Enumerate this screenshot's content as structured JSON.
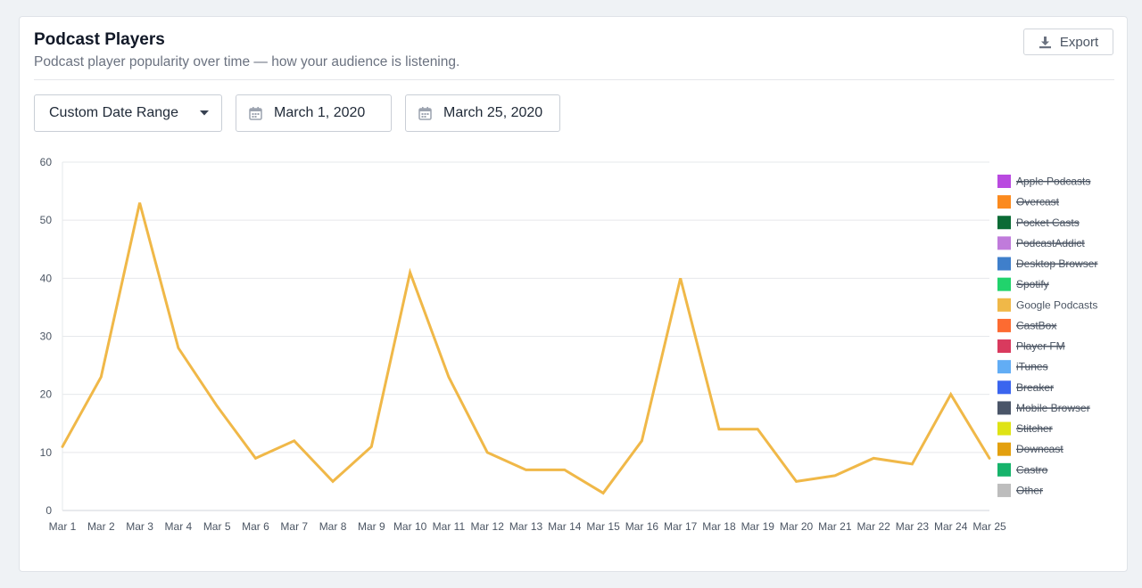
{
  "header": {
    "title": "Podcast Players",
    "subtitle": "Podcast player popularity over time — how your audience is listening.",
    "export_label": "Export"
  },
  "filters": {
    "range_label": "Custom Date Range",
    "date_from": "March 1, 2020",
    "date_to": "March 25, 2020"
  },
  "colors": {
    "grid": "#e6e8eb",
    "axis_text": "#4b5563",
    "line": "#f0b848"
  },
  "chart_data": {
    "type": "line",
    "x": [
      "Mar 1",
      "Mar 2",
      "Mar 3",
      "Mar 4",
      "Mar 5",
      "Mar 6",
      "Mar 7",
      "Mar 8",
      "Mar 9",
      "Mar 10",
      "Mar 11",
      "Mar 12",
      "Mar 13",
      "Mar 14",
      "Mar 15",
      "Mar 16",
      "Mar 17",
      "Mar 18",
      "Mar 19",
      "Mar 20",
      "Mar 21",
      "Mar 22",
      "Mar 23",
      "Mar 24",
      "Mar 25"
    ],
    "ylim": [
      0,
      60
    ],
    "yticks": [
      0,
      10,
      20,
      30,
      40,
      50,
      60
    ],
    "grid": true,
    "legend_position": "right",
    "legend": [
      {
        "name": "Apple Podcasts",
        "color": "#b94ae0",
        "hidden": true
      },
      {
        "name": "Overcast",
        "color": "#fb8a1e",
        "hidden": true
      },
      {
        "name": "Pocket Casts",
        "color": "#0b6b35",
        "hidden": true
      },
      {
        "name": "PodcastAddict",
        "color": "#c07bdb",
        "hidden": true
      },
      {
        "name": "Desktop Browser",
        "color": "#3f7fcb",
        "hidden": true
      },
      {
        "name": "Spotify",
        "color": "#21d36c",
        "hidden": true
      },
      {
        "name": "Google Podcasts",
        "color": "#f0b848",
        "hidden": false
      },
      {
        "name": "CastBox",
        "color": "#fd6b31",
        "hidden": true
      },
      {
        "name": "Player FM",
        "color": "#d93a5e",
        "hidden": true
      },
      {
        "name": "iTunes",
        "color": "#62adf5",
        "hidden": true
      },
      {
        "name": "Breaker",
        "color": "#3a65ef",
        "hidden": true
      },
      {
        "name": "Mobile Browser",
        "color": "#4a5568",
        "hidden": true
      },
      {
        "name": "Stitcher",
        "color": "#dfe315",
        "hidden": true
      },
      {
        "name": "Downcast",
        "color": "#e3a00e",
        "hidden": true
      },
      {
        "name": "Castro",
        "color": "#16b36b",
        "hidden": true
      },
      {
        "name": "Other",
        "color": "#bdbdbd",
        "hidden": true
      }
    ],
    "series": [
      {
        "name": "Google Podcasts",
        "values": [
          11,
          23,
          53,
          28,
          18,
          9,
          12,
          5,
          11,
          41,
          23,
          10,
          7,
          7,
          3,
          12,
          40,
          14,
          14,
          5,
          6,
          9,
          8,
          20,
          9
        ]
      }
    ]
  }
}
